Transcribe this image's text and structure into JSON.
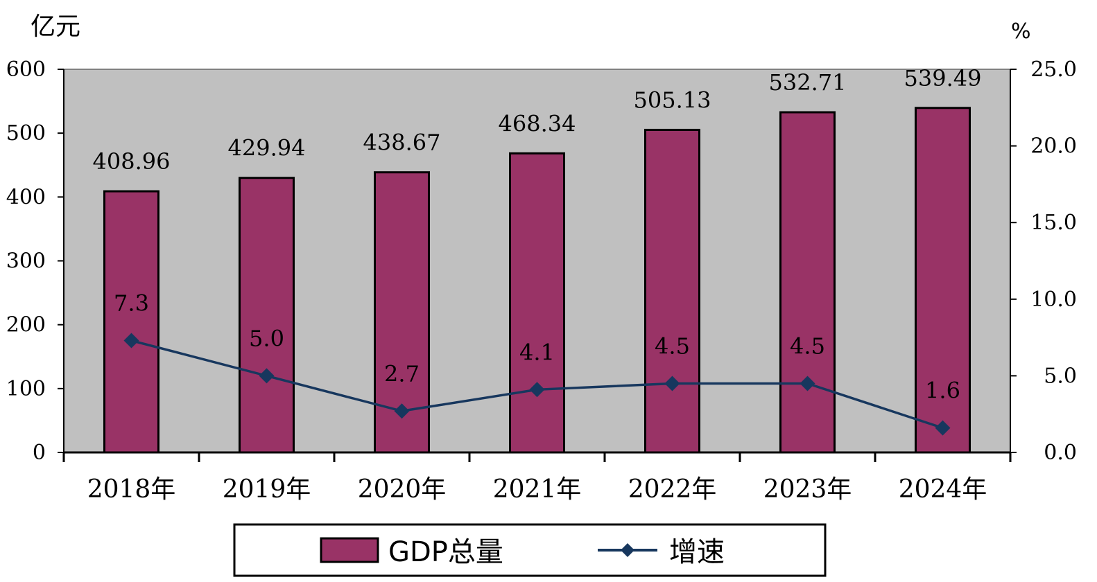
{
  "chart_data": {
    "type": "bar",
    "categories": [
      "2018年",
      "2019年",
      "2020年",
      "2021年",
      "2022年",
      "2023年",
      "2024年"
    ],
    "series": [
      {
        "name": "GDP总量",
        "type": "bar",
        "axis": "left",
        "values": [
          408.96,
          429.94,
          438.67,
          468.34,
          505.13,
          532.71,
          539.49
        ],
        "labels": [
          "408.96",
          "429.94",
          "438.67",
          "468.34",
          "505.13",
          "532.71",
          "539.49"
        ],
        "color": "#993366"
      },
      {
        "name": "增速",
        "type": "line",
        "axis": "right",
        "values": [
          7.3,
          5.0,
          2.7,
          4.1,
          4.5,
          4.5,
          1.6
        ],
        "labels": [
          "7.3",
          "5.0",
          "2.7",
          "4.1",
          "4.5",
          "4.5",
          "1.6"
        ],
        "color": "#17375E",
        "marker": "diamond"
      }
    ],
    "y_left": {
      "unit": "亿元",
      "ylim": [
        0,
        600
      ],
      "ticks": [
        0,
        100,
        200,
        300,
        400,
        500,
        600
      ],
      "tick_labels": [
        "0",
        "100",
        "200",
        "300",
        "400",
        "500",
        "600"
      ]
    },
    "y_right": {
      "unit": "%",
      "ylim": [
        0,
        25
      ],
      "ticks": [
        0,
        5,
        10,
        15,
        20,
        25
      ],
      "tick_labels": [
        "0.0",
        "5.0",
        "10.0",
        "15.0",
        "20.0",
        "25.0"
      ]
    },
    "plot_background": "#C0C0C0",
    "grid": false,
    "legend_position": "bottom"
  }
}
